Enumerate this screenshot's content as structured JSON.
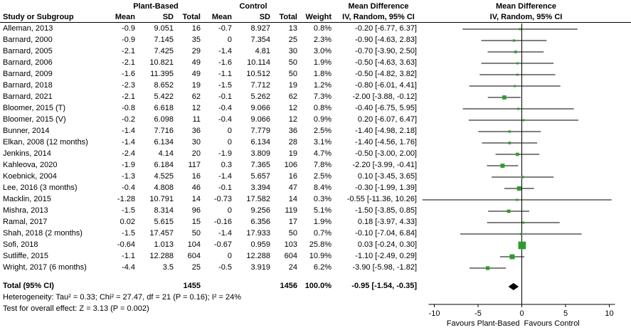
{
  "headers": {
    "group1": "Plant-Based",
    "group2": "Control",
    "md": "Mean Difference",
    "ci_method": "IV, Random, 95% CI",
    "study": "Study or Subgroup",
    "mean": "Mean",
    "sd": "SD",
    "total": "Total",
    "weight": "Weight"
  },
  "chart_data": {
    "type": "forest",
    "effect_measure": "Mean Difference",
    "model": "IV, Random, 95% CI",
    "studies": [
      {
        "cells": [
          "Alleman, 2013",
          "-0.9",
          "9.051",
          "16",
          "-0.7",
          "8.927",
          "13",
          "0.8%",
          "-0.20 [-6.77, 6.37]"
        ],
        "est": -0.2,
        "lo": -6.77,
        "hi": 6.37,
        "weight": 0.8
      },
      {
        "cells": [
          "Barnard, 2000",
          "-0.9",
          "7.145",
          "35",
          "0",
          "7.354",
          "25",
          "2.3%",
          "-0.90 [-4.63, 2.83]"
        ],
        "est": -0.9,
        "lo": -4.63,
        "hi": 2.83,
        "weight": 2.3
      },
      {
        "cells": [
          "Barnard, 2005",
          "-2.1",
          "7.425",
          "29",
          "-1.4",
          "4.81",
          "30",
          "3.0%",
          "-0.70 [-3.90, 2.50]"
        ],
        "est": -0.7,
        "lo": -3.9,
        "hi": 2.5,
        "weight": 3.0
      },
      {
        "cells": [
          "Barnard, 2006",
          "-2.1",
          "10.821",
          "49",
          "-1.6",
          "10.114",
          "50",
          "1.9%",
          "-0.50 [-4.63, 3.63]"
        ],
        "est": -0.5,
        "lo": -4.63,
        "hi": 3.63,
        "weight": 1.9
      },
      {
        "cells": [
          "Barnard, 2009",
          "-1.6",
          "11.395",
          "49",
          "-1.1",
          "10.512",
          "50",
          "1.8%",
          "-0.50 [-4.82, 3.82]"
        ],
        "est": -0.5,
        "lo": -4.82,
        "hi": 3.82,
        "weight": 1.8
      },
      {
        "cells": [
          "Barnard, 2018",
          "-2.3",
          "8.652",
          "19",
          "-1.5",
          "7.712",
          "19",
          "1.2%",
          "-0.80 [-6.01, 4.41]"
        ],
        "est": -0.8,
        "lo": -6.01,
        "hi": 4.41,
        "weight": 1.2
      },
      {
        "cells": [
          "Barnard, 2021",
          "-2.1",
          "5.422",
          "62",
          "-0.1",
          "5.262",
          "62",
          "7.3%",
          "-2.00 [-3.88, -0.12]"
        ],
        "est": -2.0,
        "lo": -3.88,
        "hi": -0.12,
        "weight": 7.3
      },
      {
        "cells": [
          "Bloomer, 2015 (T)",
          "-0.8",
          "6.618",
          "12",
          "-0.4",
          "9.066",
          "12",
          "0.8%",
          "-0.40 [-6.75, 5.95]"
        ],
        "est": -0.4,
        "lo": -6.75,
        "hi": 5.95,
        "weight": 0.8
      },
      {
        "cells": [
          "Bloomer, 2015 (V)",
          "-0.2",
          "6.098",
          "11",
          "-0.4",
          "9.066",
          "12",
          "0.9%",
          "0.20 [-6.07, 6.47]"
        ],
        "est": 0.2,
        "lo": -6.07,
        "hi": 6.47,
        "weight": 0.9
      },
      {
        "cells": [
          "Bunner, 2014",
          "-1.4",
          "7.716",
          "36",
          "0",
          "7.779",
          "36",
          "2.5%",
          "-1.40 [-4.98, 2.18]"
        ],
        "est": -1.4,
        "lo": -4.98,
        "hi": 2.18,
        "weight": 2.5
      },
      {
        "cells": [
          "Elkan, 2008 (12 months)",
          "-1.4",
          "6.134",
          "30",
          "0",
          "6.134",
          "28",
          "3.1%",
          "-1.40 [-4.56, 1.76]"
        ],
        "est": -1.4,
        "lo": -4.56,
        "hi": 1.76,
        "weight": 3.1
      },
      {
        "cells": [
          "Jenkins, 2014",
          "-2.4",
          "4.14",
          "20",
          "-1.9",
          "3.809",
          "19",
          "4.7%",
          "-0.50 [-3.00, 2.00]"
        ],
        "est": -0.5,
        "lo": -3.0,
        "hi": 2.0,
        "weight": 4.7
      },
      {
        "cells": [
          "Kahleova, 2020",
          "-1.9",
          "6.184",
          "117",
          "0.3",
          "7.365",
          "106",
          "7.8%",
          "-2.20 [-3.99, -0.41]"
        ],
        "est": -2.2,
        "lo": -3.99,
        "hi": -0.41,
        "weight": 7.8
      },
      {
        "cells": [
          "Koebnick, 2004",
          "-1.3",
          "4.525",
          "16",
          "-1.4",
          "5.657",
          "16",
          "2.5%",
          "0.10 [-3.45, 3.65]"
        ],
        "est": 0.1,
        "lo": -3.45,
        "hi": 3.65,
        "weight": 2.5
      },
      {
        "cells": [
          "Lee, 2016 (3 months)",
          "-0.4",
          "4.808",
          "46",
          "-0.1",
          "3.394",
          "47",
          "8.4%",
          "-0.30 [-1.99, 1.39]"
        ],
        "est": -0.3,
        "lo": -1.99,
        "hi": 1.39,
        "weight": 8.4
      },
      {
        "cells": [
          "Macklin, 2015",
          "-1.28",
          "10.791",
          "14",
          "-0.73",
          "17.582",
          "14",
          "0.3%",
          "-0.55 [-11.36, 10.26]"
        ],
        "est": -0.55,
        "lo": -11.36,
        "hi": 10.26,
        "weight": 0.3
      },
      {
        "cells": [
          "Mishra, 2013",
          "-1.5",
          "8.314",
          "96",
          "0",
          "9.256",
          "119",
          "5.1%",
          "-1.50 [-3.85, 0.85]"
        ],
        "est": -1.5,
        "lo": -3.85,
        "hi": 0.85,
        "weight": 5.1
      },
      {
        "cells": [
          "Ramal, 2017",
          "0.02",
          "5.615",
          "15",
          "-0.16",
          "6.356",
          "17",
          "1.9%",
          "0.18 [-3.97, 4.33]"
        ],
        "est": 0.18,
        "lo": -3.97,
        "hi": 4.33,
        "weight": 1.9
      },
      {
        "cells": [
          "Shah, 2018 (2 months)",
          "-1.5",
          "17.457",
          "50",
          "-1.4",
          "17.933",
          "50",
          "0.7%",
          "-0.10 [-7.04, 6.84]"
        ],
        "est": -0.1,
        "lo": -7.04,
        "hi": 6.84,
        "weight": 0.7
      },
      {
        "cells": [
          "Sofi, 2018",
          "-0.64",
          "1.013",
          "104",
          "-0.67",
          "0.959",
          "103",
          "25.8%",
          "0.03 [-0.24, 0.30]"
        ],
        "est": 0.03,
        "lo": -0.24,
        "hi": 0.3,
        "weight": 25.8
      },
      {
        "cells": [
          "Sutliffe, 2015",
          "-1.1",
          "12.288",
          "604",
          "0",
          "12.288",
          "604",
          "10.9%",
          "-1.10 [-2.49, 0.29]"
        ],
        "est": -1.1,
        "lo": -2.49,
        "hi": 0.29,
        "weight": 10.9
      },
      {
        "cells": [
          "Wright, 2017 (6 months)",
          "-4.4",
          "3.5",
          "25",
          "-0.5",
          "3.919",
          "24",
          "6.2%",
          "-3.90 [-5.98, -1.82]"
        ],
        "est": -3.9,
        "lo": -5.98,
        "hi": -1.82,
        "weight": 6.2
      }
    ],
    "total": {
      "cells": [
        "Total (95% CI)",
        "",
        "",
        "1455",
        "",
        "",
        "1456",
        "100.0%",
        "-0.95 [-1.54, -0.35]"
      ],
      "est": -0.95,
      "lo": -1.54,
      "hi": -0.35
    },
    "axis": {
      "ticks": [
        -10,
        -5,
        0,
        5,
        10
      ],
      "xlim": [
        -11.5,
        12
      ],
      "left_label": "Favours Plant-Based",
      "right_label": "Favours Control"
    },
    "footnotes": [
      "Heterogeneity: Tau² = 0.33; Chi² = 27.47, df = 21 (P = 0.16); I² = 24%",
      "Test for overall effect: Z = 3.13 (P = 0.002)"
    ],
    "style": {
      "marker_color": "#2E9B2E",
      "diamond_color": "#000000",
      "line_color": "#000000"
    }
  }
}
